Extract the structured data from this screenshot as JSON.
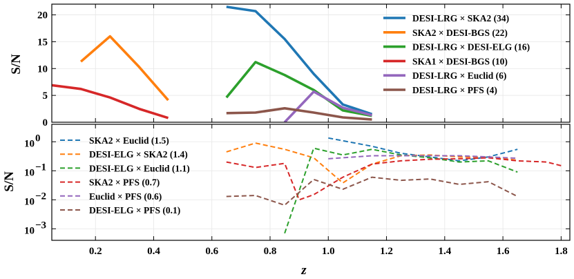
{
  "chart_data": [
    {
      "type": "line",
      "panel": "top",
      "ylabel": "S/N",
      "xlabel": "",
      "xlim": [
        0.05,
        1.83
      ],
      "ylim": [
        0,
        22
      ],
      "yscale": "linear",
      "yticks": [
        0,
        5,
        10,
        15,
        20
      ],
      "ytick_labels": [
        "0",
        "5",
        "10",
        "15",
        "20"
      ],
      "grid": true,
      "legend_position": "top-right",
      "linestyle": "solid",
      "series": [
        {
          "name": "DESI-LRG × SKA2 (34)",
          "color": "#1f77b4",
          "x": [
            0.65,
            0.75,
            0.85,
            0.95,
            1.05,
            1.15
          ],
          "y": [
            21.5,
            20.7,
            15.5,
            9.0,
            3.3,
            1.5
          ]
        },
        {
          "name": "SKA2 × DESI-BGS (22)",
          "color": "#ff7f0e",
          "x": [
            0.15,
            0.25,
            0.35,
            0.45
          ],
          "y": [
            11.3,
            16.0,
            10.3,
            4.1
          ]
        },
        {
          "name": "DESI-LRG × DESI-ELG (16)",
          "color": "#2ca02c",
          "x": [
            0.65,
            0.75,
            0.85,
            0.95,
            1.05,
            1.15
          ],
          "y": [
            4.6,
            11.2,
            8.8,
            6.0,
            2.2,
            1.2
          ]
        },
        {
          "name": "SKA1 × DESI-BGS (10)",
          "color": "#d62728",
          "x": [
            0.05,
            0.15,
            0.25,
            0.35,
            0.45
          ],
          "y": [
            6.9,
            6.2,
            4.6,
            2.5,
            0.8
          ]
        },
        {
          "name": "DESI-LRG × Euclid (6)",
          "color": "#9467bd",
          "x": [
            0.85,
            0.95,
            1.05,
            1.15
          ],
          "y": [
            0.0,
            5.7,
            2.7,
            1.3
          ]
        },
        {
          "name": "DESI-LRG × PFS (4)",
          "color": "#8c564b",
          "x": [
            0.65,
            0.75,
            0.85,
            0.95,
            1.05,
            1.15
          ],
          "y": [
            1.7,
            1.8,
            2.6,
            1.8,
            0.9,
            0.5
          ]
        }
      ]
    },
    {
      "type": "line",
      "panel": "bottom",
      "ylabel": "S/N",
      "xlabel": "z",
      "xlim": [
        0.05,
        1.83
      ],
      "ylim": [
        0.0004,
        4
      ],
      "yscale": "log",
      "yticks": [
        0.001,
        0.01,
        0.1,
        1
      ],
      "ytick_labels": [
        {
          "base": "10",
          "exp": "−3"
        },
        {
          "base": "10",
          "exp": "−2"
        },
        {
          "base": "10",
          "exp": "−1"
        },
        {
          "base": "10",
          "exp": "0"
        }
      ],
      "xticks": [
        0.2,
        0.4,
        0.6,
        0.8,
        1.0,
        1.2,
        1.4,
        1.6,
        1.8
      ],
      "xtick_labels": [
        "0.2",
        "0.4",
        "0.6",
        "0.8",
        "1.0",
        "1.2",
        "1.4",
        "1.6",
        "1.8"
      ],
      "grid": true,
      "legend_position": "top-left",
      "linestyle": "dashed",
      "series": [
        {
          "name": "SKA2 × Euclid (1.5)",
          "color": "#1f77b4",
          "x": [
            1.0,
            1.15,
            1.25,
            1.35,
            1.45,
            1.55,
            1.65
          ],
          "y": [
            1.35,
            0.7,
            0.4,
            0.3,
            0.22,
            0.3,
            0.55
          ]
        },
        {
          "name": "DESI-ELG × SKA2 (1.4)",
          "color": "#ff7f0e",
          "x": [
            0.65,
            0.75,
            0.85,
            0.95,
            1.05,
            1.15,
            1.25,
            1.35,
            1.45,
            1.55,
            1.65
          ],
          "y": [
            0.45,
            0.9,
            0.55,
            0.28,
            0.038,
            0.17,
            0.33,
            0.35,
            0.3,
            0.3,
            0.23
          ]
        },
        {
          "name": "DESI-ELG × Euclid (1.1)",
          "color": "#2ca02c",
          "x": [
            0.85,
            0.95,
            1.05,
            1.15,
            1.25,
            1.35,
            1.45,
            1.55,
            1.65
          ],
          "y": [
            0.0007,
            0.6,
            0.35,
            0.55,
            0.35,
            0.28,
            0.2,
            0.22,
            0.09
          ]
        },
        {
          "name": "SKA2 × PFS (0.7)",
          "color": "#d62728",
          "x": [
            0.65,
            0.75,
            0.85,
            0.9,
            0.95,
            1.05,
            1.15,
            1.25,
            1.35,
            1.45,
            1.55,
            1.65,
            1.75,
            1.8
          ],
          "y": [
            0.2,
            0.13,
            0.18,
            0.01,
            0.015,
            0.06,
            0.17,
            0.22,
            0.25,
            0.26,
            0.28,
            0.22,
            0.2,
            0.15
          ]
        },
        {
          "name": "Euclid × PFS (0.6)",
          "color": "#9467bd",
          "x": [
            1.0,
            1.15,
            1.25,
            1.35,
            1.45,
            1.55,
            1.65
          ],
          "y": [
            0.26,
            0.33,
            0.33,
            0.33,
            0.33,
            0.3,
            0.27
          ]
        },
        {
          "name": "DESI-ELG × PFS (0.1)",
          "color": "#8c564b",
          "x": [
            0.65,
            0.75,
            0.85,
            0.95,
            1.05,
            1.15,
            1.25,
            1.35,
            1.45,
            1.55,
            1.65
          ],
          "y": [
            0.013,
            0.014,
            0.0065,
            0.05,
            0.023,
            0.06,
            0.047,
            0.052,
            0.034,
            0.042,
            0.013
          ]
        }
      ]
    }
  ]
}
